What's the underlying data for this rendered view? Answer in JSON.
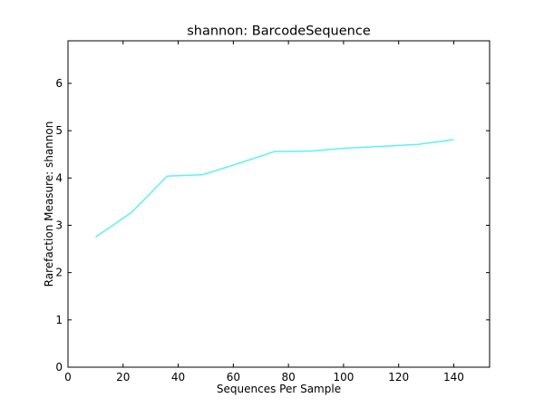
{
  "chart_data": {
    "type": "line",
    "title": "shannon: BarcodeSequence",
    "xlabel": "Sequences Per Sample",
    "ylabel": "Rarefaction Measure: shannon",
    "xlim": [
      0,
      153
    ],
    "ylim": [
      0,
      6.9
    ],
    "xticks": [
      "0",
      "20",
      "40",
      "60",
      "80",
      "100",
      "120",
      "140"
    ],
    "yticks": [
      "0",
      "1",
      "2",
      "3",
      "4",
      "5",
      "6"
    ],
    "grid": false,
    "legend": "none",
    "series": [
      {
        "color": "#5ff0f4",
        "points": [
          {
            "x": 10,
            "y": 2.75
          },
          {
            "x": 23,
            "y": 3.27
          },
          {
            "x": 36,
            "y": 4.04
          },
          {
            "x": 49,
            "y": 4.07
          },
          {
            "x": 62,
            "y": 4.31
          },
          {
            "x": 75,
            "y": 4.56
          },
          {
            "x": 88,
            "y": 4.57
          },
          {
            "x": 101,
            "y": 4.63
          },
          {
            "x": 114,
            "y": 4.67
          },
          {
            "x": 127,
            "y": 4.71
          },
          {
            "x": 140,
            "y": 4.81
          }
        ]
      }
    ]
  }
}
